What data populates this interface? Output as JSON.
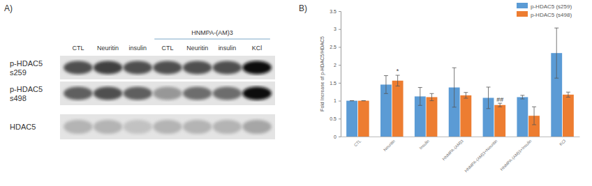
{
  "blot": {
    "panel_label": "A)",
    "group_label": "HNMPA-(AM)3",
    "group_lanes": [
      3,
      6
    ],
    "lanes": [
      "CTL",
      "Neuritin",
      "insulin",
      "CTL",
      "Neuritin",
      "insulin",
      "KCl"
    ],
    "rows": [
      {
        "label": [
          "p-HDAC5",
          "s259"
        ],
        "intensity": [
          0.75,
          0.8,
          0.75,
          0.75,
          0.75,
          0.75,
          0.95
        ]
      },
      {
        "label": [
          "p-HDAC5",
          "s498"
        ],
        "intensity": [
          0.7,
          0.75,
          0.7,
          0.5,
          0.65,
          0.65,
          0.95
        ]
      },
      {
        "label": [
          "HDAC5"
        ],
        "intensity": [
          0.4,
          0.4,
          0.35,
          0.4,
          0.4,
          0.4,
          0.45
        ]
      }
    ]
  },
  "chart_data": {
    "type": "bar",
    "panel_label": "B)",
    "y_label": "Fold Increase of p-HDAC5/HDAC5",
    "categories": [
      "CTL",
      "Neuritin",
      "Insulin",
      "HNMPA-(AM)3",
      "HNMPA-(AM)3+Neuritin",
      "HNMPA-(AM)3+Insulin",
      "KCl"
    ],
    "series": [
      {
        "name": "p-HDAC5 (s259)",
        "color": "#5b9bd5",
        "values": [
          1,
          1.45,
          1.12,
          1.37,
          1.08,
          1.1,
          2.33
        ],
        "errors": [
          0,
          0.25,
          0.25,
          0.55,
          0.3,
          0.05,
          0.7
        ]
      },
      {
        "name": "p-HDAC5 (s498)",
        "color": "#ed7d31",
        "values": [
          1,
          1.56,
          1.1,
          1.15,
          0.88,
          0.58,
          1.17
        ],
        "errors": [
          0,
          0.15,
          0.1,
          0.08,
          0.05,
          0.25,
          0.07
        ]
      }
    ],
    "annotations": [
      {
        "text": "*",
        "x": 1,
        "y": 1.76
      },
      {
        "text": "##",
        "x": 4,
        "y": 0.97
      }
    ],
    "ylim": [
      0,
      3.5
    ],
    "yticks": [
      0,
      0.5,
      1,
      1.5,
      2,
      2.5,
      3,
      3.5
    ],
    "legend": "top-right",
    "grid": false
  }
}
